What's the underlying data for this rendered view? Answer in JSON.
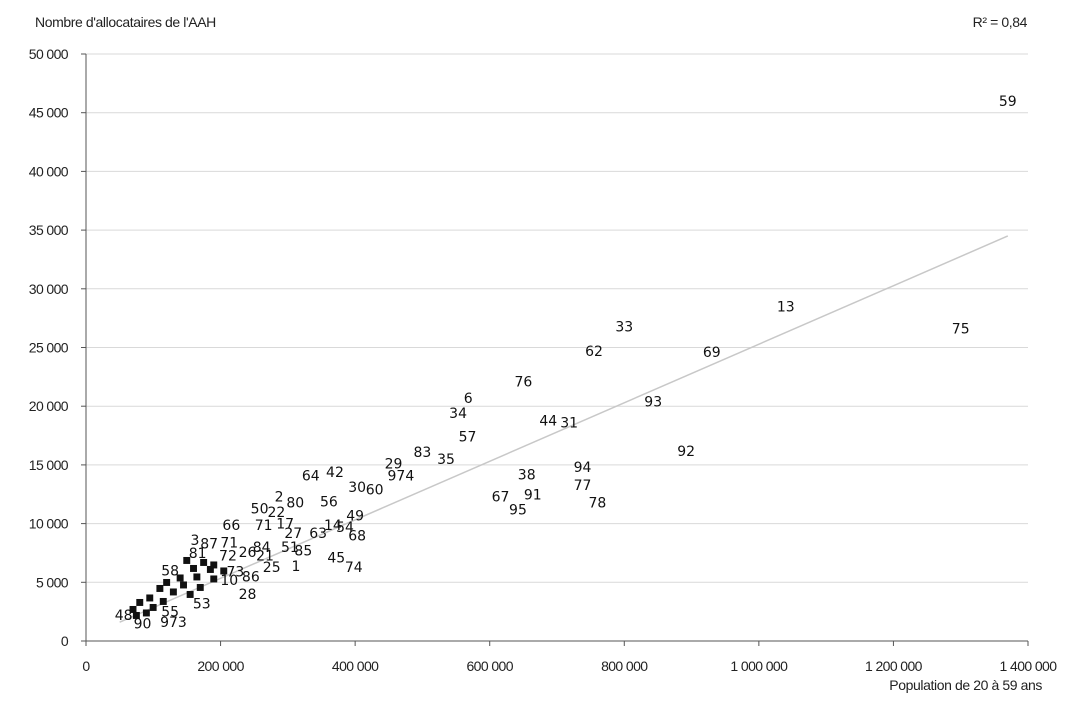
{
  "chart_data": {
    "type": "scatter",
    "title": "",
    "ylabel": "Nombre d'allocataires de l'AAH",
    "xlabel": "Population de 20 à 59 ans",
    "annotation": "R² = 0,84",
    "xlim": [
      0,
      1400000
    ],
    "ylim": [
      0,
      50000
    ],
    "xticks": [
      0,
      200000,
      400000,
      600000,
      800000,
      1000000,
      1200000,
      1400000
    ],
    "xtick_labels": [
      "0",
      "200 000",
      "400 000",
      "600 000",
      "800 000",
      "1 000 000",
      "1 200 000",
      "1 400 000"
    ],
    "yticks": [
      0,
      5000,
      10000,
      15000,
      20000,
      25000,
      30000,
      35000,
      40000,
      45000,
      50000
    ],
    "ytick_labels": [
      "0",
      "5 000",
      "10 000",
      "15 000",
      "20 000",
      "25 000",
      "30 000",
      "35 000",
      "40 000",
      "45 000",
      "50 000"
    ],
    "grid": "horizontal",
    "trendline": {
      "type": "linear",
      "x": [
        50000,
        1370000
      ],
      "y": [
        1600,
        34500
      ]
    },
    "colors": {
      "grid": "#d9d9d9",
      "trendline": "#c8c8c8",
      "axis": "#555555"
    },
    "points": [
      {
        "label": "59",
        "x": 1370000,
        "y": 46000
      },
      {
        "label": "13",
        "x": 1040000,
        "y": 28500
      },
      {
        "label": "75",
        "x": 1300000,
        "y": 26600
      },
      {
        "label": "33",
        "x": 800000,
        "y": 26800
      },
      {
        "label": "62",
        "x": 755000,
        "y": 24700
      },
      {
        "label": "69",
        "x": 930000,
        "y": 24600
      },
      {
        "label": "76",
        "x": 650000,
        "y": 22100
      },
      {
        "label": "6",
        "x": 568000,
        "y": 20700
      },
      {
        "label": "34",
        "x": 553000,
        "y": 19400
      },
      {
        "label": "93",
        "x": 843000,
        "y": 20400
      },
      {
        "label": "44",
        "x": 687000,
        "y": 18800
      },
      {
        "label": "31",
        "x": 718000,
        "y": 18600
      },
      {
        "label": "57",
        "x": 567000,
        "y": 17400
      },
      {
        "label": "83",
        "x": 500000,
        "y": 16100
      },
      {
        "label": "35",
        "x": 535000,
        "y": 15500
      },
      {
        "label": "92",
        "x": 892000,
        "y": 16200
      },
      {
        "label": "29",
        "x": 457000,
        "y": 15100
      },
      {
        "label": "974",
        "x": 468000,
        "y": 14100
      },
      {
        "label": "94",
        "x": 738000,
        "y": 14800
      },
      {
        "label": "38",
        "x": 655000,
        "y": 14200
      },
      {
        "label": "77",
        "x": 738000,
        "y": 13300
      },
      {
        "label": "64",
        "x": 334000,
        "y": 14100
      },
      {
        "label": "42",
        "x": 370000,
        "y": 14400
      },
      {
        "label": "30",
        "x": 403000,
        "y": 13100
      },
      {
        "label": "60",
        "x": 429000,
        "y": 12900
      },
      {
        "label": "67",
        "x": 616000,
        "y": 12300
      },
      {
        "label": "91",
        "x": 664000,
        "y": 12500
      },
      {
        "label": "95",
        "x": 642000,
        "y": 11200
      },
      {
        "label": "78",
        "x": 760000,
        "y": 11800
      },
      {
        "label": "2",
        "x": 287000,
        "y": 12300
      },
      {
        "label": "80",
        "x": 311000,
        "y": 11800
      },
      {
        "label": "56",
        "x": 361000,
        "y": 11900
      },
      {
        "label": "50",
        "x": 258000,
        "y": 11300
      },
      {
        "label": "22",
        "x": 283000,
        "y": 11000
      },
      {
        "label": "49",
        "x": 400000,
        "y": 10700
      },
      {
        "label": "68",
        "x": 403000,
        "y": 9000
      },
      {
        "label": "66",
        "x": 216000,
        "y": 9900
      },
      {
        "label": "71",
        "x": 264000,
        "y": 9900
      },
      {
        "label": "17",
        "x": 296000,
        "y": 10000
      },
      {
        "label": "14",
        "x": 367000,
        "y": 9900
      },
      {
        "label": "54",
        "x": 385000,
        "y": 9700
      },
      {
        "label": "27",
        "x": 308000,
        "y": 9200
      },
      {
        "label": "63",
        "x": 345000,
        "y": 9200
      },
      {
        "label": "3",
        "x": 162000,
        "y": 8600
      },
      {
        "label": "87",
        "x": 183000,
        "y": 8300
      },
      {
        "label": "71",
        "x": 213000,
        "y": 8400
      },
      {
        "label": "84",
        "x": 261000,
        "y": 8000
      },
      {
        "label": "51",
        "x": 303000,
        "y": 8000
      },
      {
        "label": "85",
        "x": 323000,
        "y": 7700
      },
      {
        "label": "81",
        "x": 166000,
        "y": 7500
      },
      {
        "label": "72",
        "x": 211000,
        "y": 7300
      },
      {
        "label": "26",
        "x": 240000,
        "y": 7600
      },
      {
        "label": "21",
        "x": 266000,
        "y": 7300
      },
      {
        "label": "45",
        "x": 372000,
        "y": 7100
      },
      {
        "label": "74",
        "x": 398000,
        "y": 6300
      },
      {
        "label": "73",
        "x": 222000,
        "y": 5900
      },
      {
        "label": "86",
        "x": 245000,
        "y": 5500
      },
      {
        "label": "25",
        "x": 276000,
        "y": 6300
      },
      {
        "label": "1",
        "x": 312000,
        "y": 6400
      },
      {
        "label": "58",
        "x": 125000,
        "y": 6000
      },
      {
        "label": "10",
        "x": 213000,
        "y": 5200
      },
      {
        "label": "53",
        "x": 172000,
        "y": 3200
      },
      {
        "label": "28",
        "x": 240000,
        "y": 4000
      },
      {
        "label": "48",
        "x": 56000,
        "y": 2200
      },
      {
        "label": "55",
        "x": 125000,
        "y": 2500
      },
      {
        "label": "90",
        "x": 84000,
        "y": 1500
      },
      {
        "label": "973",
        "x": 130000,
        "y": 1600
      },
      {
        "label": "",
        "x": 150000,
        "y": 7000
      },
      {
        "label": "",
        "x": 175000,
        "y": 6800
      },
      {
        "label": "",
        "x": 190000,
        "y": 6600
      },
      {
        "label": "",
        "x": 160000,
        "y": 6300
      },
      {
        "label": "",
        "x": 185000,
        "y": 6200
      },
      {
        "label": "",
        "x": 205000,
        "y": 6100
      },
      {
        "label": "",
        "x": 140000,
        "y": 5500
      },
      {
        "label": "",
        "x": 165000,
        "y": 5600
      },
      {
        "label": "",
        "x": 190000,
        "y": 5400
      },
      {
        "label": "",
        "x": 120000,
        "y": 5100
      },
      {
        "label": "",
        "x": 145000,
        "y": 4900
      },
      {
        "label": "",
        "x": 170000,
        "y": 4700
      },
      {
        "label": "",
        "x": 110000,
        "y": 4600
      },
      {
        "label": "",
        "x": 130000,
        "y": 4300
      },
      {
        "label": "",
        "x": 155000,
        "y": 4100
      },
      {
        "label": "",
        "x": 95000,
        "y": 3800
      },
      {
        "label": "",
        "x": 115000,
        "y": 3500
      },
      {
        "label": "",
        "x": 80000,
        "y": 3400
      },
      {
        "label": "",
        "x": 100000,
        "y": 3000
      },
      {
        "label": "",
        "x": 70000,
        "y": 2800
      },
      {
        "label": "",
        "x": 90000,
        "y": 2500
      },
      {
        "label": "",
        "x": 75000,
        "y": 2300
      }
    ]
  }
}
